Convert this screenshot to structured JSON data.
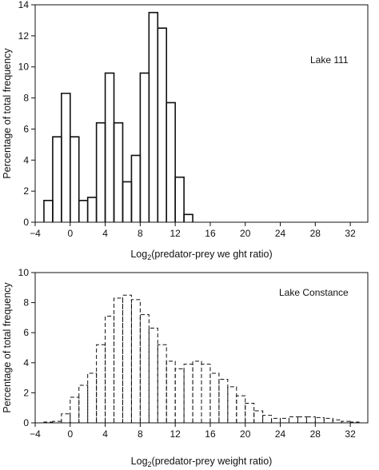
{
  "chart_data": [
    {
      "type": "histogram",
      "annotation": "Lake 111",
      "xlabel_base": "Log",
      "xlabel_sub": "2",
      "xlabel_rest": "(predator-prey we ght ratio)",
      "ylabel": "Percentage of total frequency",
      "xlim": [
        -4,
        34
      ],
      "ylim": [
        0,
        14
      ],
      "xticks": [
        -4,
        0,
        4,
        8,
        12,
        16,
        20,
        24,
        28,
        32
      ],
      "yticks": [
        0,
        2,
        4,
        6,
        8,
        10,
        12,
        14
      ],
      "bin_width": 1,
      "bins": [
        {
          "x": -2.5,
          "y": 1.4
        },
        {
          "x": -1.5,
          "y": 5.5
        },
        {
          "x": -0.5,
          "y": 8.3
        },
        {
          "x": 0.5,
          "y": 5.5
        },
        {
          "x": 1.5,
          "y": 1.4
        },
        {
          "x": 2.5,
          "y": 1.6
        },
        {
          "x": 3.5,
          "y": 6.4
        },
        {
          "x": 4.5,
          "y": 9.6
        },
        {
          "x": 5.5,
          "y": 6.4
        },
        {
          "x": 6.5,
          "y": 2.6
        },
        {
          "x": 7.5,
          "y": 4.3
        },
        {
          "x": 8.5,
          "y": 9.6
        },
        {
          "x": 9.5,
          "y": 13.5
        },
        {
          "x": 10.5,
          "y": 12.5
        },
        {
          "x": 11.5,
          "y": 7.7
        },
        {
          "x": 12.5,
          "y": 2.9
        },
        {
          "x": 13.5,
          "y": 0.5
        }
      ]
    },
    {
      "type": "histogram",
      "annotation": "Lake Constance",
      "xlabel_base": "Log",
      "xlabel_sub": "2",
      "xlabel_rest": "(predator-prey weight ratio)",
      "ylabel": "Percentage of total frequency",
      "xlim": [
        -4,
        34
      ],
      "ylim": [
        0,
        10
      ],
      "xticks": [
        -4,
        0,
        4,
        8,
        12,
        16,
        20,
        24,
        28,
        32
      ],
      "yticks": [
        0,
        2,
        4,
        6,
        8,
        10
      ],
      "bin_width": 1,
      "bins": [
        {
          "x": -2.5,
          "y": 0.05
        },
        {
          "x": -1.5,
          "y": 0.1
        },
        {
          "x": -0.5,
          "y": 0.6
        },
        {
          "x": 0.5,
          "y": 1.7
        },
        {
          "x": 1.5,
          "y": 2.5
        },
        {
          "x": 2.5,
          "y": 3.3
        },
        {
          "x": 3.5,
          "y": 5.2
        },
        {
          "x": 4.5,
          "y": 7.1
        },
        {
          "x": 5.5,
          "y": 8.3
        },
        {
          "x": 6.5,
          "y": 8.5
        },
        {
          "x": 7.5,
          "y": 8.2
        },
        {
          "x": 8.5,
          "y": 7.2
        },
        {
          "x": 9.5,
          "y": 6.3
        },
        {
          "x": 10.5,
          "y": 5.2
        },
        {
          "x": 11.5,
          "y": 4.1
        },
        {
          "x": 12.5,
          "y": 3.6
        },
        {
          "x": 13.5,
          "y": 3.9
        },
        {
          "x": 14.5,
          "y": 4.1
        },
        {
          "x": 15.5,
          "y": 3.9
        },
        {
          "x": 16.5,
          "y": 3.3
        },
        {
          "x": 17.5,
          "y": 2.9
        },
        {
          "x": 18.5,
          "y": 2.4
        },
        {
          "x": 19.5,
          "y": 1.8
        },
        {
          "x": 20.5,
          "y": 1.3
        },
        {
          "x": 21.5,
          "y": 0.8
        },
        {
          "x": 22.5,
          "y": 0.5
        },
        {
          "x": 23.5,
          "y": 0.3
        },
        {
          "x": 24.5,
          "y": 0.3
        },
        {
          "x": 25.5,
          "y": 0.4
        },
        {
          "x": 26.5,
          "y": 0.4
        },
        {
          "x": 27.5,
          "y": 0.4
        },
        {
          "x": 28.5,
          "y": 0.35
        },
        {
          "x": 29.5,
          "y": 0.3
        },
        {
          "x": 30.5,
          "y": 0.2
        },
        {
          "x": 31.5,
          "y": 0.1
        },
        {
          "x": 32.5,
          "y": 0.05
        }
      ]
    }
  ]
}
